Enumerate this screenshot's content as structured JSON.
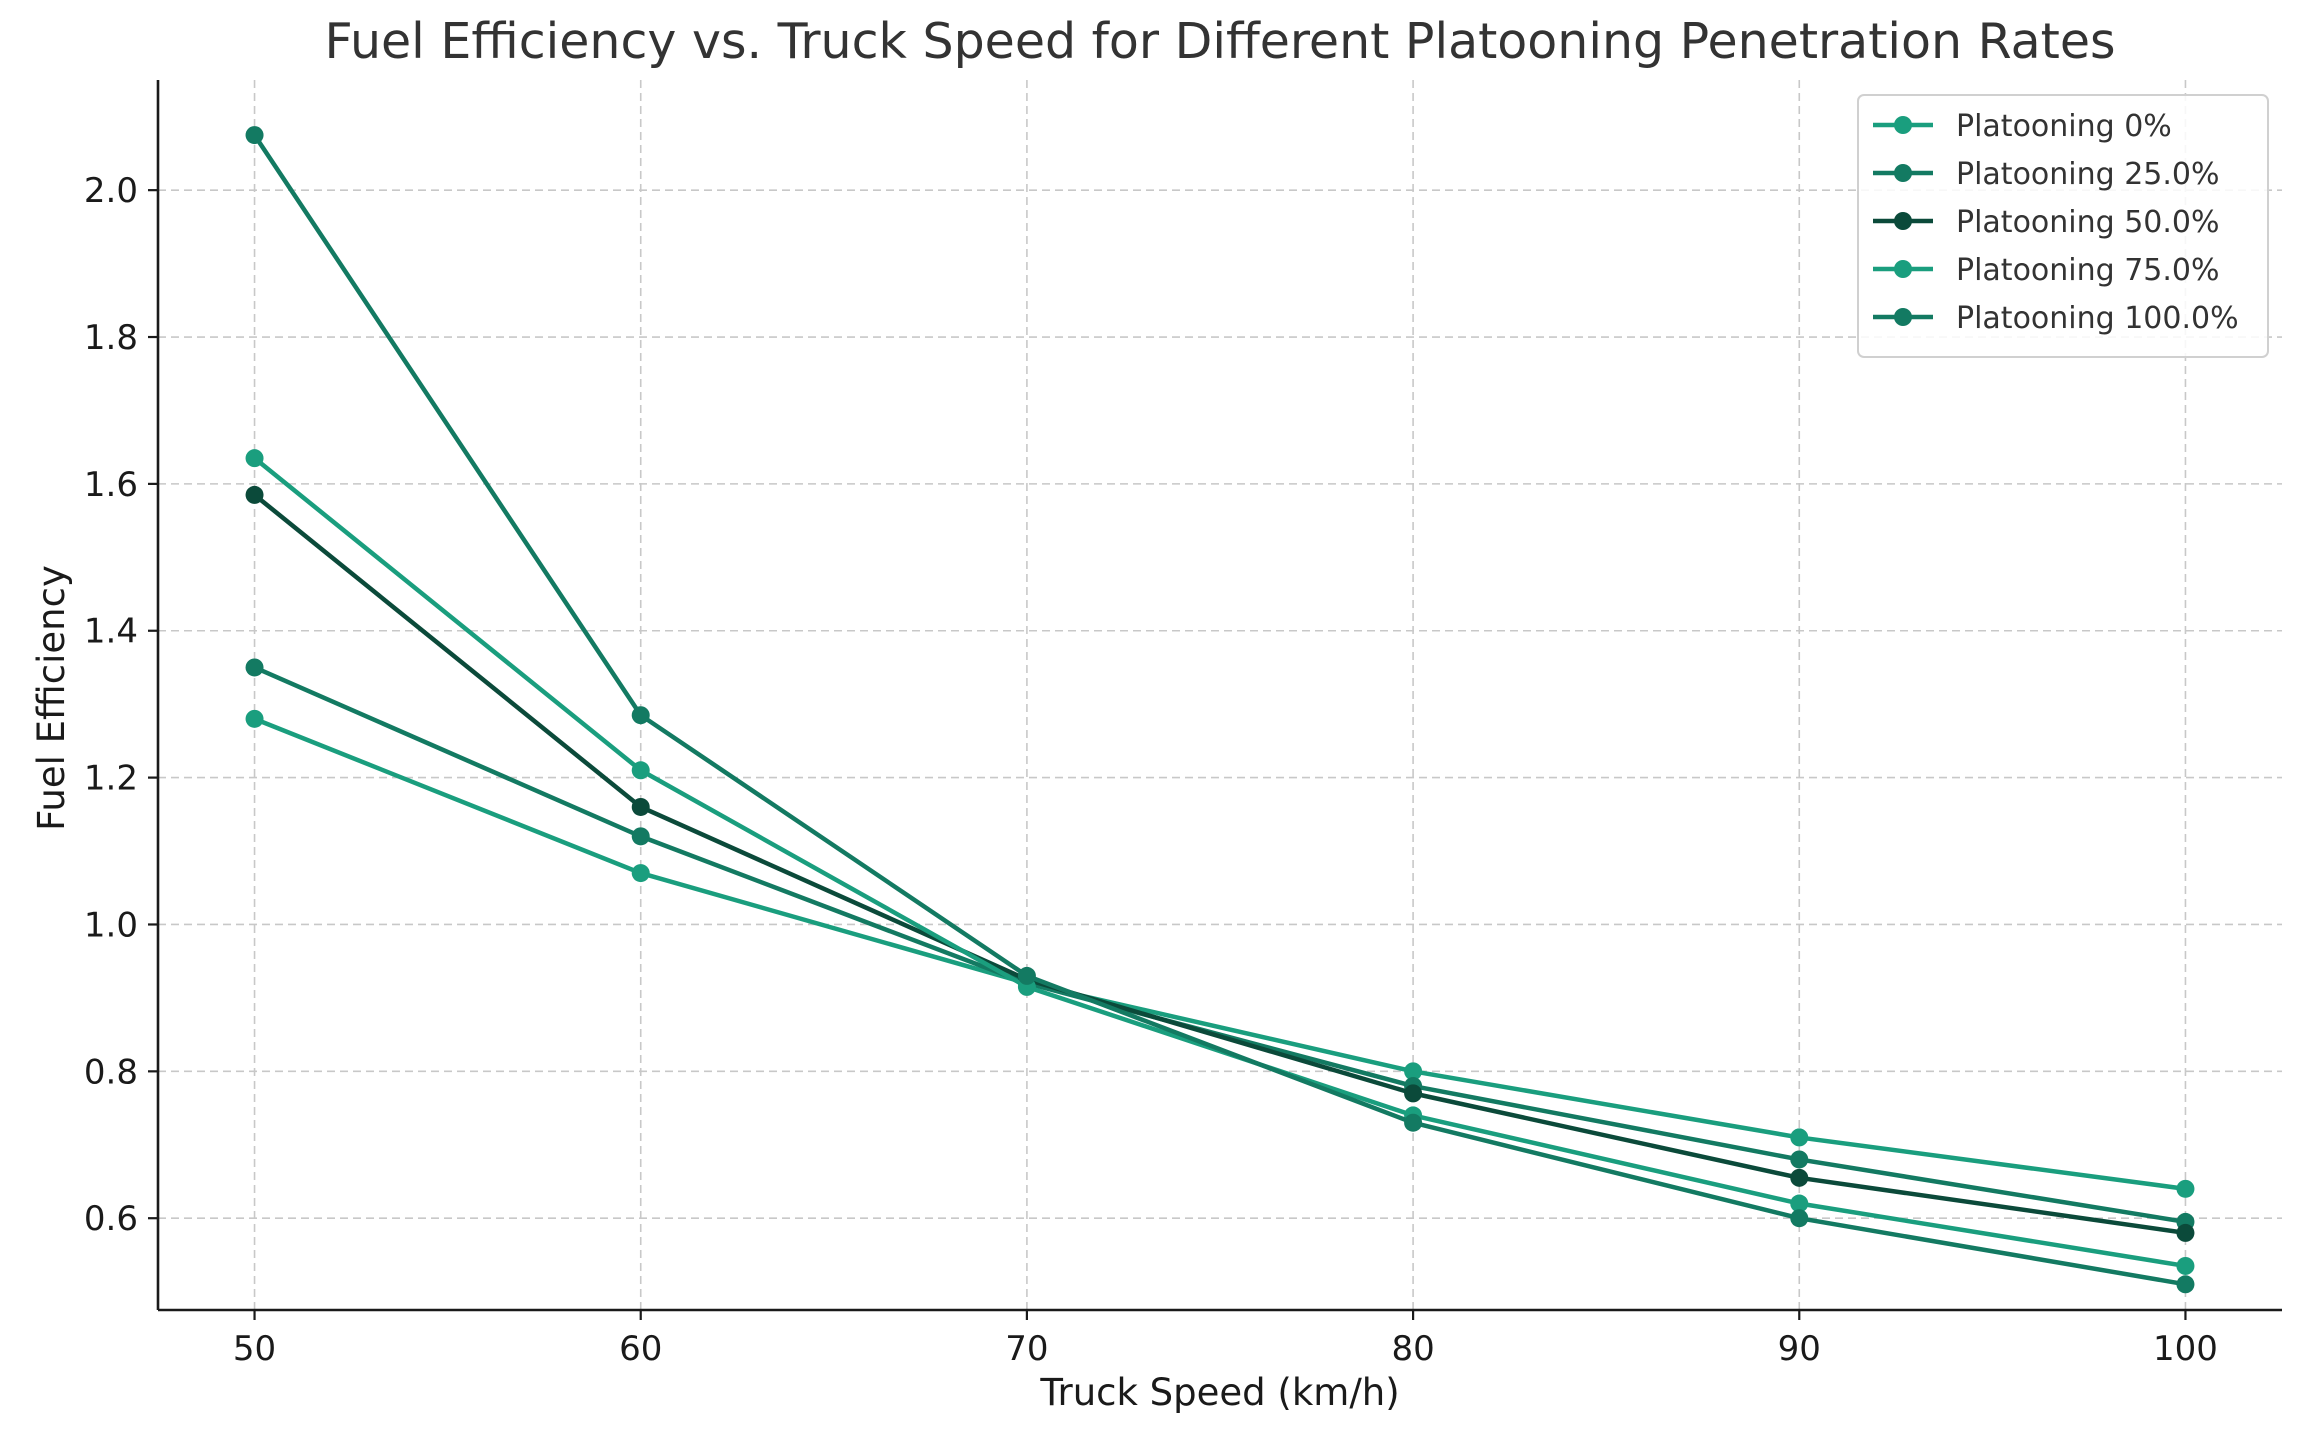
{
  "chart_data": {
    "type": "line",
    "title": "Fuel Efficiency vs. Truck Speed for Different Platooning Penetration Rates",
    "xlabel": "Truck Speed (km/h)",
    "ylabel": "Fuel Efficiency",
    "x": [
      50,
      60,
      70,
      80,
      90,
      100
    ],
    "xlim": [
      47.5,
      102.5
    ],
    "ylim": [
      0.475,
      2.15
    ],
    "xticks": [
      "50",
      "60",
      "70",
      "80",
      "90",
      "100"
    ],
    "yticks": [
      "0.6",
      "0.8",
      "1.0",
      "1.2",
      "1.4",
      "1.6",
      "1.8",
      "2.0"
    ],
    "xtick_values": [
      50,
      60,
      70,
      80,
      90,
      100
    ],
    "ytick_values": [
      0.6,
      0.8,
      1.0,
      1.2,
      1.4,
      1.6,
      1.8,
      2.0
    ],
    "grid": true,
    "legend_position": "top-right",
    "series": [
      {
        "name": "Platooning 0%",
        "color": "#1a9e7e",
        "values": [
          1.28,
          1.07,
          0.92,
          0.8,
          0.71,
          0.64
        ]
      },
      {
        "name": "Platooning 25.0%",
        "color": "#137a62",
        "values": [
          1.35,
          1.12,
          0.92,
          0.78,
          0.68,
          0.595
        ]
      },
      {
        "name": "Platooning 50.0%",
        "color": "#0b4a3a",
        "values": [
          1.585,
          1.16,
          0.925,
          0.77,
          0.655,
          0.58
        ]
      },
      {
        "name": "Platooning 75.0%",
        "color": "#1a9e7e",
        "values": [
          1.635,
          1.21,
          0.915,
          0.74,
          0.62,
          0.535
        ]
      },
      {
        "name": "Platooning 100.0%",
        "color": "#137a62",
        "values": [
          2.075,
          1.285,
          0.93,
          0.73,
          0.6,
          0.51
        ]
      }
    ]
  }
}
